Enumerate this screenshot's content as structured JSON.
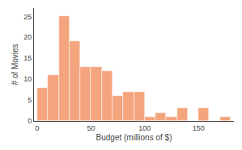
{
  "chart_data": {
    "type": "histogram",
    "bins": [
      0,
      10,
      20,
      30,
      40,
      50,
      60,
      70,
      80,
      90,
      100,
      110,
      120,
      130,
      140,
      150,
      160,
      170,
      180
    ],
    "values": [
      8,
      11,
      25,
      19,
      13,
      13,
      12,
      6,
      7,
      7,
      1,
      2,
      1,
      3,
      0,
      3,
      0,
      1
    ],
    "color": "#F4A57E",
    "xlabel": "Budget (millions of $)",
    "ylabel": "# of Movies",
    "xlim": [
      -3,
      183
    ],
    "ylim": [
      0,
      27
    ],
    "xticks": [
      0,
      50,
      100,
      150
    ],
    "yticks": [
      0,
      5,
      10,
      15,
      20,
      25
    ],
    "grid": false
  }
}
